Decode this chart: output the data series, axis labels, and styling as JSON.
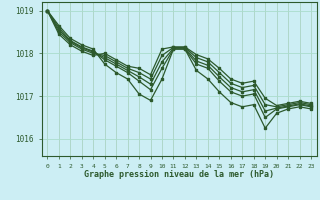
{
  "bg_color": "#cceef4",
  "line_color": "#2d5a2d",
  "grid_color": "#aaddcc",
  "xlabel": "Graphe pression niveau de la mer (hPa)",
  "xlabel_color": "#2d5a2d",
  "xlim": [
    -0.5,
    23.5
  ],
  "ylim": [
    1015.6,
    1019.2
  ],
  "yticks": [
    1016,
    1017,
    1018,
    1019
  ],
  "xticks": [
    0,
    1,
    2,
    3,
    4,
    5,
    6,
    7,
    8,
    9,
    10,
    11,
    12,
    13,
    14,
    15,
    16,
    17,
    18,
    19,
    20,
    21,
    22,
    23
  ],
  "curves": [
    [
      1019.0,
      1018.65,
      1018.35,
      1018.2,
      1018.1,
      1017.75,
      1017.55,
      1017.4,
      1017.05,
      1016.9,
      1017.4,
      1018.1,
      1018.1,
      1017.6,
      1017.4,
      1017.1,
      1016.85,
      1016.75,
      1016.8,
      1016.25,
      1016.6,
      1016.7,
      1016.75,
      1016.7
    ],
    [
      1019.0,
      1018.6,
      1018.3,
      1018.15,
      1018.05,
      1017.85,
      1017.7,
      1017.55,
      1017.35,
      1017.15,
      1017.65,
      1018.1,
      1018.1,
      1017.75,
      1017.65,
      1017.35,
      1017.1,
      1017.0,
      1017.05,
      1016.5,
      1016.7,
      1016.75,
      1016.8,
      1016.75
    ],
    [
      1019.0,
      1018.55,
      1018.28,
      1018.13,
      1018.03,
      1017.9,
      1017.75,
      1017.6,
      1017.45,
      1017.28,
      1017.8,
      1018.12,
      1018.12,
      1017.82,
      1017.72,
      1017.45,
      1017.2,
      1017.1,
      1017.15,
      1016.65,
      1016.72,
      1016.77,
      1016.82,
      1016.77
    ],
    [
      1019.0,
      1018.5,
      1018.25,
      1018.1,
      1018.0,
      1017.95,
      1017.8,
      1017.65,
      1017.55,
      1017.4,
      1017.95,
      1018.14,
      1018.14,
      1017.9,
      1017.8,
      1017.55,
      1017.3,
      1017.2,
      1017.25,
      1016.8,
      1016.75,
      1016.8,
      1016.85,
      1016.8
    ],
    [
      1019.0,
      1018.45,
      1018.2,
      1018.05,
      1017.95,
      1018.0,
      1017.85,
      1017.7,
      1017.65,
      1017.5,
      1018.1,
      1018.15,
      1018.15,
      1017.97,
      1017.87,
      1017.65,
      1017.4,
      1017.3,
      1017.35,
      1016.95,
      1016.78,
      1016.83,
      1016.88,
      1016.83
    ]
  ]
}
